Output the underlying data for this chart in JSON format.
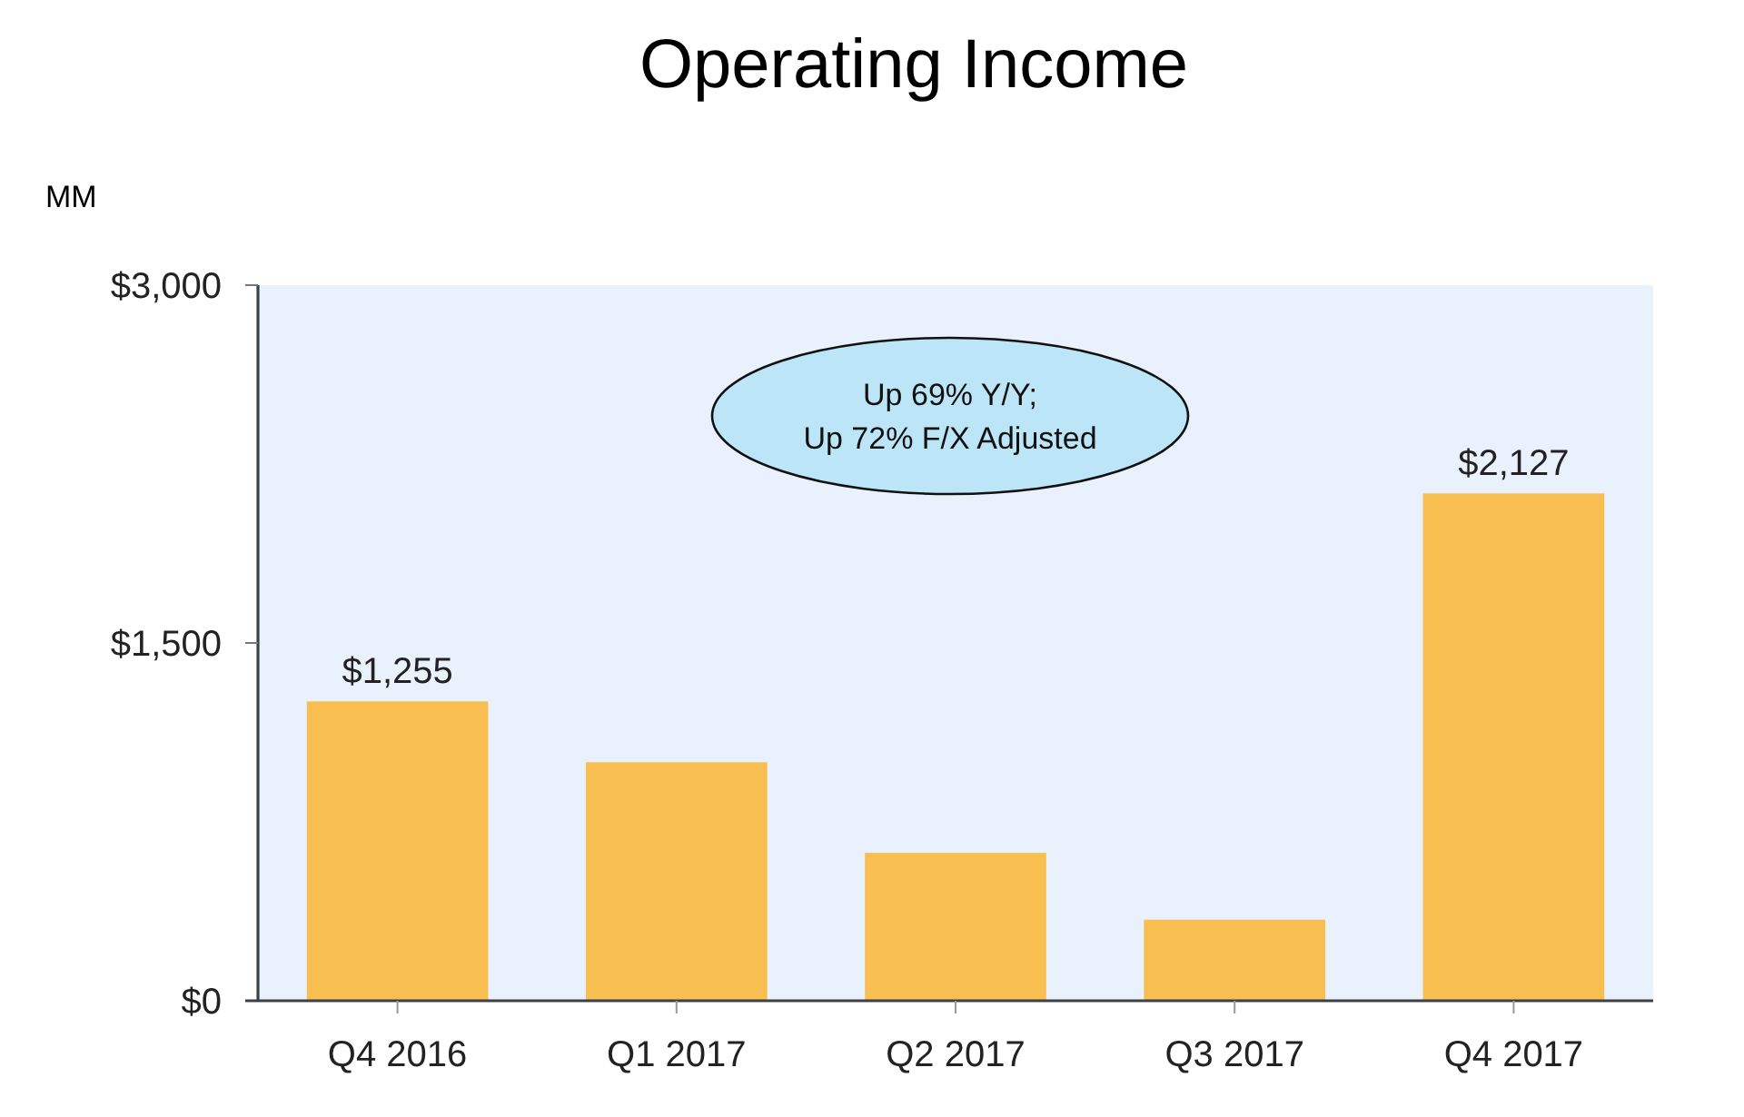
{
  "chart_data": {
    "type": "bar",
    "title": "Operating Income",
    "ylabel": "MM",
    "categories": [
      "Q4 2016",
      "Q1 2017",
      "Q2 2017",
      "Q3 2017",
      "Q4 2017"
    ],
    "values": [
      1255,
      1000,
      620,
      340,
      2127
    ],
    "color": "#f8be4f",
    "value_labels": [
      "$1,255",
      null,
      null,
      null,
      "$2,127"
    ],
    "ylim": [
      0,
      3000
    ],
    "yticks": [
      {
        "value": 0,
        "label": "$0"
      },
      {
        "value": 1500,
        "label": "$1,500"
      },
      {
        "value": 3000,
        "label": "$3,000"
      }
    ],
    "annotations": [
      "Up 69% Y/Y;\nUp 72% F/X Adjusted"
    ]
  }
}
